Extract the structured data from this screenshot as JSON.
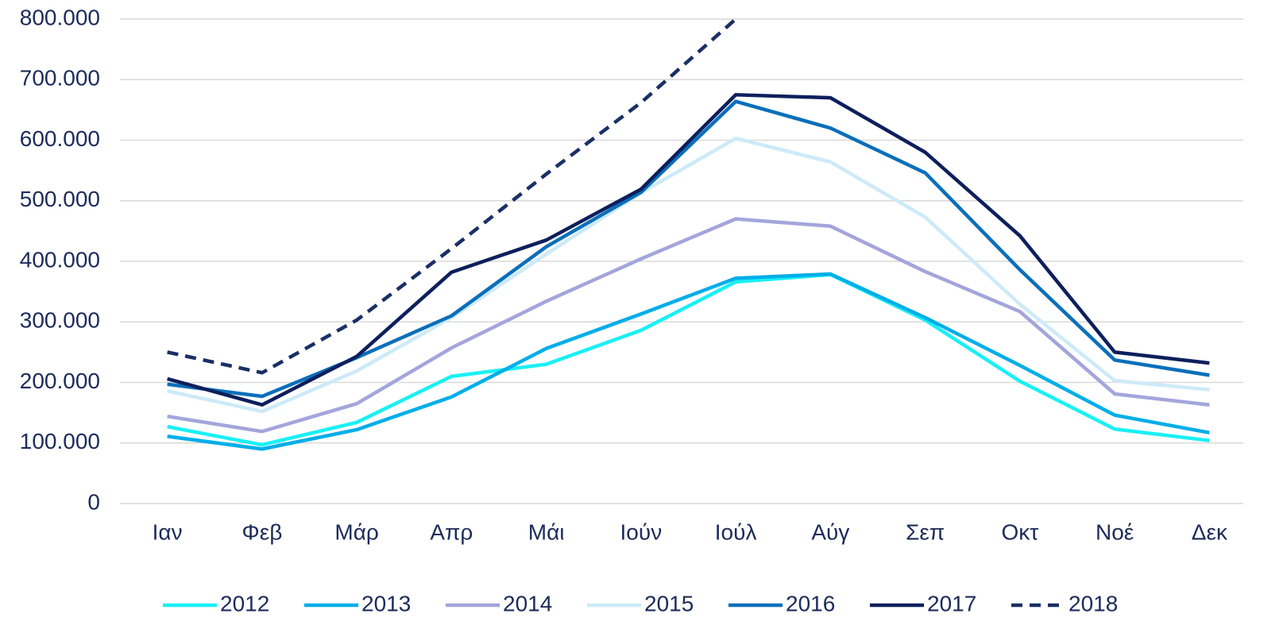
{
  "chart_data": {
    "type": "line",
    "categories": [
      "Ιαν",
      "Φεβ",
      "Μάρ",
      "Απρ",
      "Μάι",
      "Ιούν",
      "Ιούλ",
      "Αύγ",
      "Σεπ",
      "Οκτ",
      "Νοέ",
      "Δεκ"
    ],
    "series": [
      {
        "name": "2012",
        "color": "#19f0f5",
        "dashed": false,
        "values": [
          127000,
          97000,
          134000,
          210000,
          230000,
          286000,
          366000,
          378000,
          303000,
          202000,
          123000,
          104000
        ]
      },
      {
        "name": "2013",
        "color": "#00aee8",
        "dashed": false,
        "values": [
          111000,
          90000,
          122000,
          176000,
          256000,
          313000,
          372000,
          379000,
          307000,
          228000,
          146000,
          117000
        ]
      },
      {
        "name": "2014",
        "color": "#a3a5dc",
        "dashed": false,
        "values": [
          144000,
          119000,
          165000,
          257000,
          334000,
          404000,
          470000,
          458000,
          383000,
          317000,
          181000,
          163000
        ]
      },
      {
        "name": "2015",
        "color": "#cdeaf8",
        "dashed": false,
        "values": [
          186000,
          152000,
          219000,
          307000,
          412000,
          513000,
          603000,
          564000,
          473000,
          329000,
          203000,
          188000
        ]
      },
      {
        "name": "2016",
        "color": "#0a6fba",
        "dashed": false,
        "values": [
          197000,
          177000,
          241000,
          310000,
          424000,
          514000,
          664000,
          620000,
          546000,
          386000,
          237000,
          212000
        ]
      },
      {
        "name": "2017",
        "color": "#0d1f5c",
        "dashed": false,
        "values": [
          206000,
          163000,
          243000,
          382000,
          435000,
          519000,
          675000,
          670000,
          580000,
          442000,
          250000,
          232000
        ]
      },
      {
        "name": "2018",
        "color": "#1a2f66",
        "dashed": true,
        "values": [
          250000,
          216000,
          303000,
          421000,
          544000,
          662000,
          800000,
          null,
          null,
          null,
          null,
          null
        ]
      }
    ],
    "ylim": [
      0,
      800000
    ],
    "yticks": [
      0,
      {
        "value": 100000,
        "label": "100.000"
      },
      {
        "value": 200000,
        "label": "200.000"
      },
      {
        "value": 300000,
        "label": "300.000"
      },
      {
        "value": 400000,
        "label": "400.000"
      },
      {
        "value": 500000,
        "label": "500.000"
      },
      {
        "value": 600000,
        "label": "600.000"
      },
      {
        "value": 700000,
        "label": "700.000"
      },
      {
        "value": 800000,
        "label": "800.000"
      }
    ],
    "grid": true,
    "legend": "bottom"
  }
}
